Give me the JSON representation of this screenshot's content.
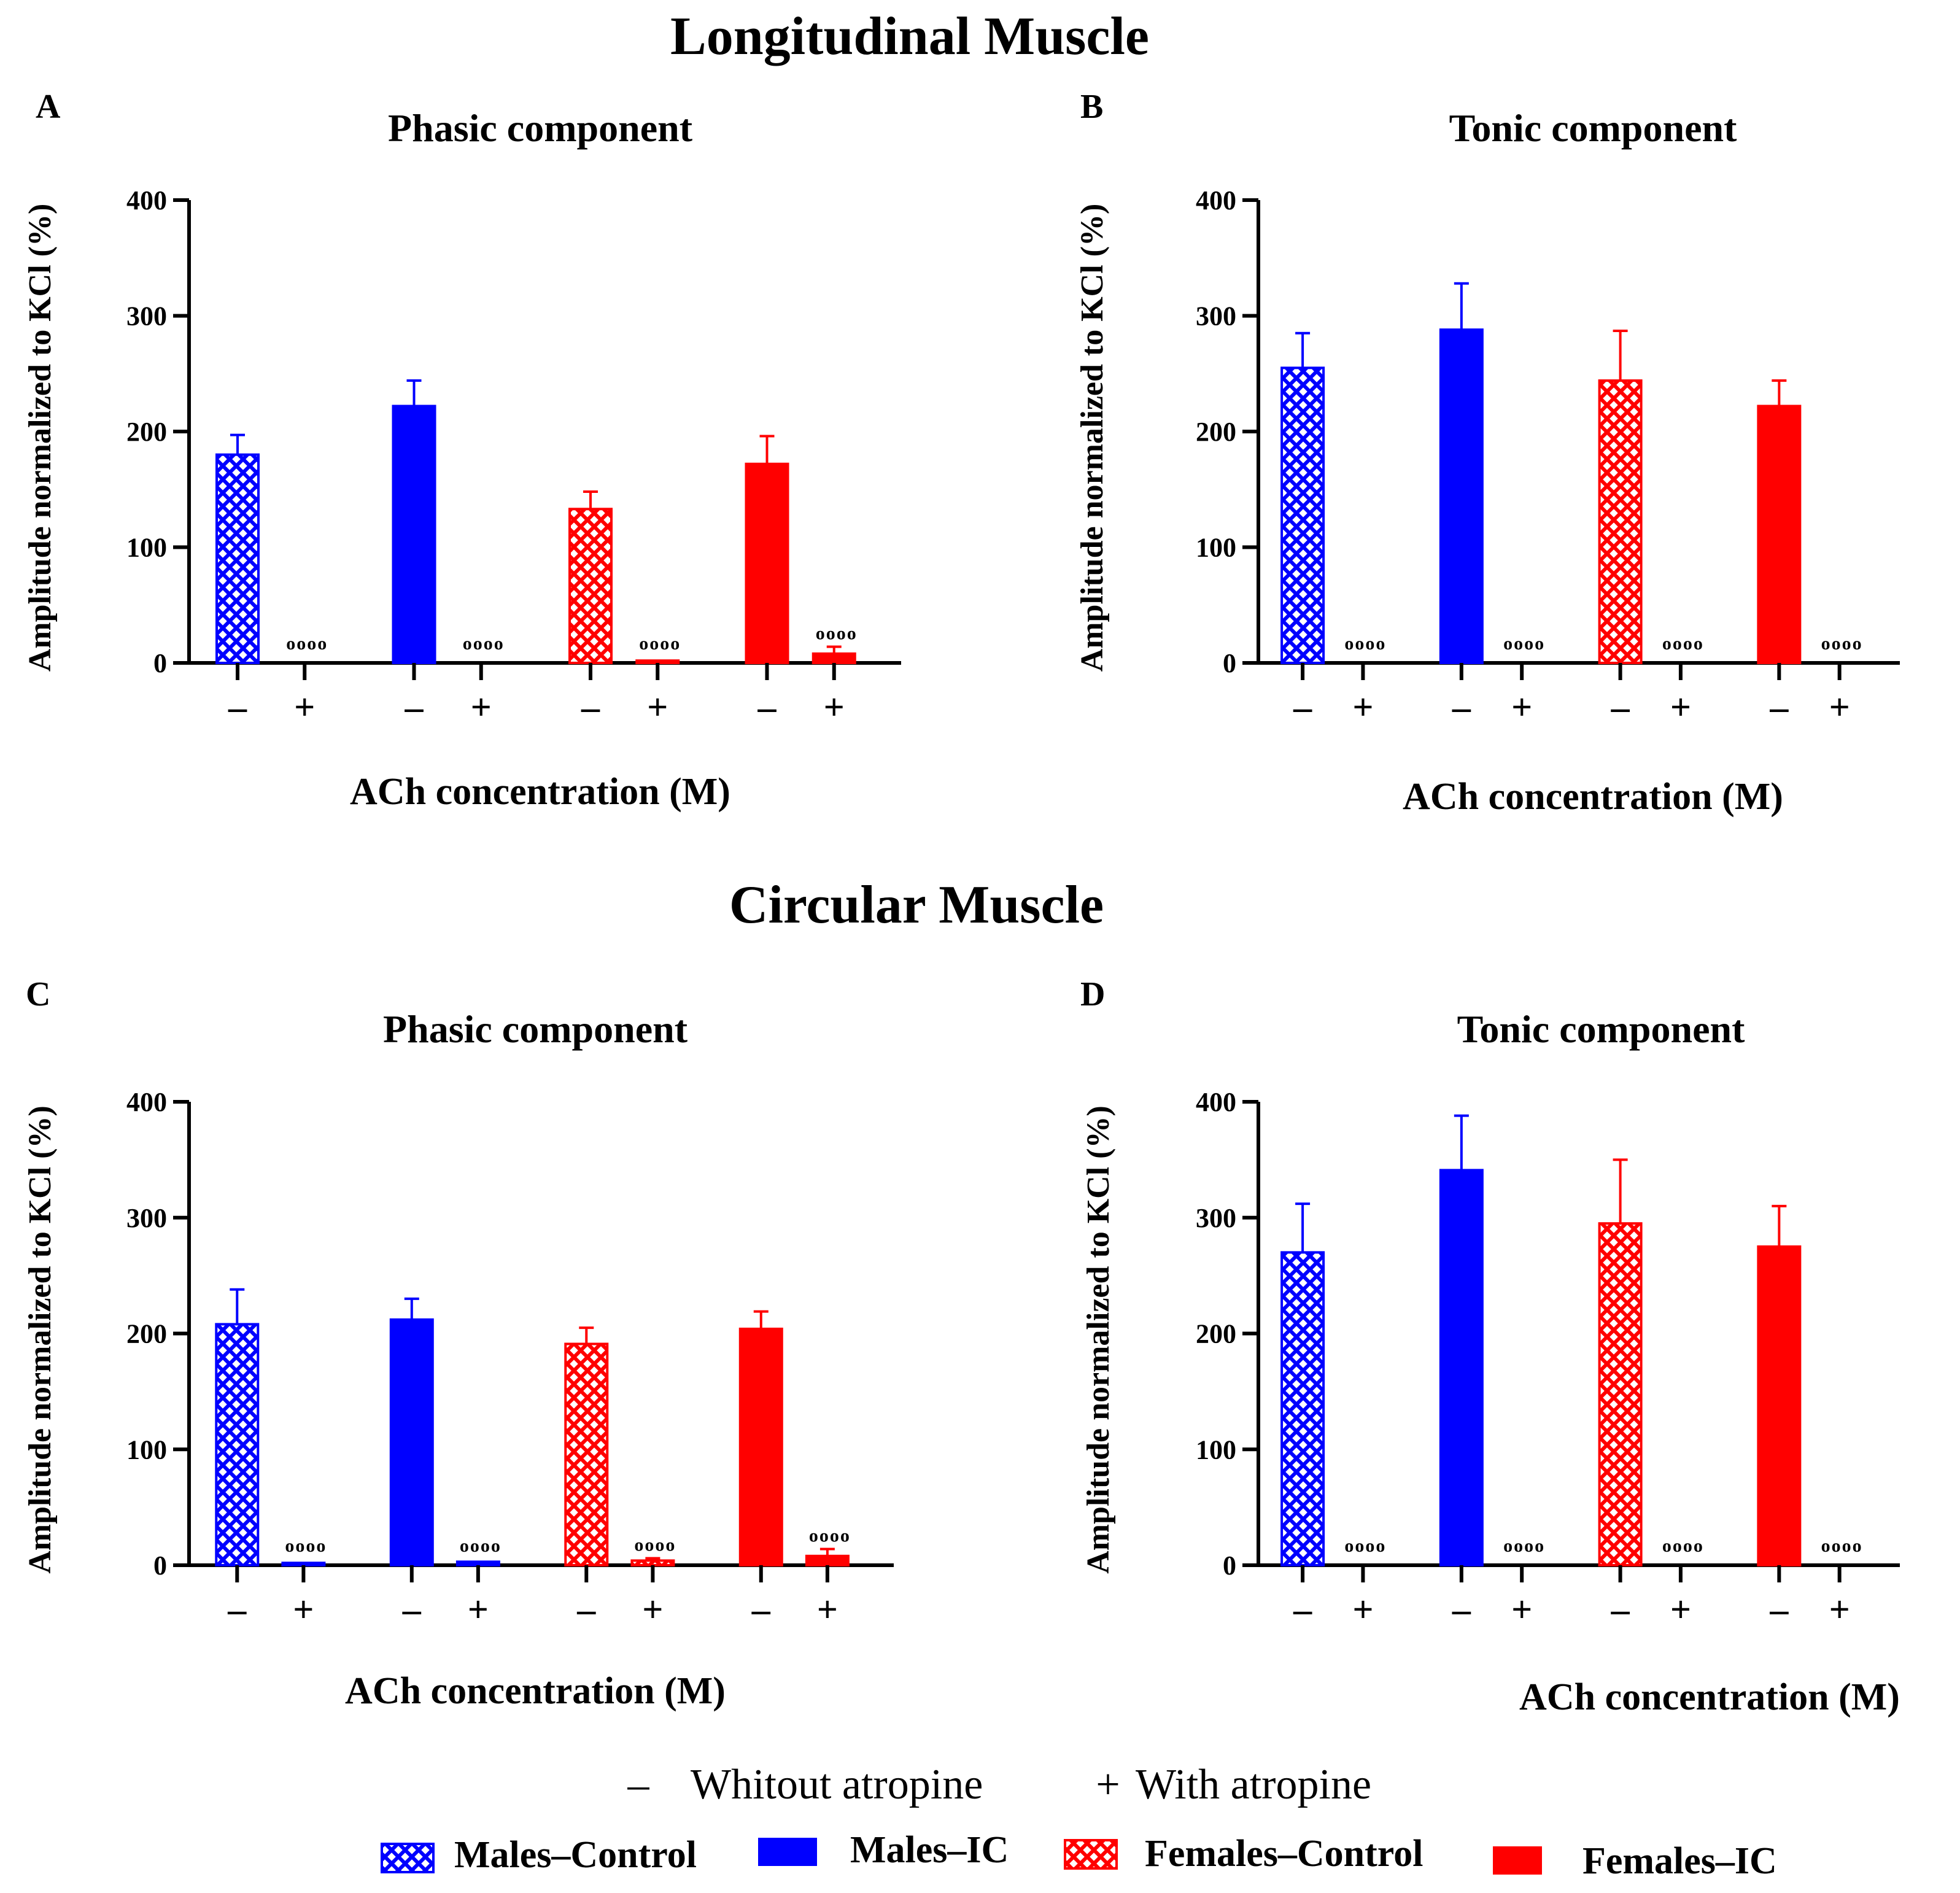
{
  "figure": {
    "sections": [
      {
        "title": "Longitudinal Muscle"
      },
      {
        "title": "Circular Muscle"
      }
    ],
    "legend": {
      "minus_symbol": "–",
      "minus_label": "Whitout atropine",
      "plus_symbol": "+",
      "plus_label": "With atropine",
      "groups": [
        {
          "label": "Males–Control",
          "color": "#0000ff",
          "pattern": "crosshatch"
        },
        {
          "label": "Males–IC",
          "color": "#0000ff",
          "pattern": "solid"
        },
        {
          "label": "Females–Control",
          "color": "#ff0000",
          "pattern": "crosshatch"
        },
        {
          "label": "Females–IC",
          "color": "#ff0000",
          "pattern": "solid"
        }
      ]
    }
  },
  "chart_data": [
    {
      "type": "bar",
      "panel": "A",
      "section": "Longitudinal Muscle",
      "title": "Phasic component",
      "xlabel": "ACh concentration (M)",
      "ylabel": "Amplitude normalized to KCl (%)",
      "ylim": [
        0,
        400
      ],
      "yticks": [
        0,
        100,
        200,
        300,
        400
      ],
      "categories": [
        "–",
        "+",
        "–",
        "+",
        "–",
        "+",
        "–",
        "+"
      ],
      "groups": [
        "Males–Control",
        "Males–IC",
        "Females–Control",
        "Females–IC"
      ],
      "values": [
        180,
        0,
        222,
        0,
        133,
        2,
        172,
        8
      ],
      "errors": [
        17,
        0,
        22,
        0,
        15,
        0,
        24,
        6
      ],
      "significance": [
        "",
        "oooo",
        "",
        "oooo",
        "",
        "oooo",
        "",
        "oooo"
      ]
    },
    {
      "type": "bar",
      "panel": "B",
      "section": "Longitudinal Muscle",
      "title": "Tonic component",
      "xlabel": "ACh concentration (M)",
      "ylabel": "Amplitude normalized to KCl (%)",
      "ylim": [
        0,
        400
      ],
      "yticks": [
        0,
        100,
        200,
        300,
        400
      ],
      "categories": [
        "–",
        "+",
        "–",
        "+",
        "–",
        "+",
        "–",
        "+"
      ],
      "groups": [
        "Males–Control",
        "Males–IC",
        "Females–Control",
        "Females–IC"
      ],
      "values": [
        255,
        0,
        288,
        0,
        244,
        0,
        222,
        0
      ],
      "errors": [
        30,
        0,
        40,
        0,
        43,
        0,
        22,
        0
      ],
      "significance": [
        "",
        "oooo",
        "",
        "oooo",
        "",
        "oooo",
        "",
        "oooo"
      ]
    },
    {
      "type": "bar",
      "panel": "C",
      "section": "Circular Muscle",
      "title": "Phasic component",
      "xlabel": "ACh concentration (M)",
      "ylabel": "Amplitude normalized to KCl (%)",
      "ylim": [
        0,
        400
      ],
      "yticks": [
        0,
        100,
        200,
        300,
        400
      ],
      "categories": [
        "–",
        "+",
        "–",
        "+",
        "–",
        "+",
        "–",
        "+"
      ],
      "groups": [
        "Males–Control",
        "Males–IC",
        "Females–Control",
        "Females–IC"
      ],
      "values": [
        208,
        2,
        212,
        3,
        191,
        4,
        204,
        8
      ],
      "errors": [
        30,
        0,
        18,
        0,
        14,
        2,
        15,
        6
      ],
      "significance": [
        "",
        "oooo",
        "",
        "oooo",
        "",
        "oooo",
        "",
        "oooo"
      ]
    },
    {
      "type": "bar",
      "panel": "D",
      "section": "Circular Muscle",
      "title": "Tonic component",
      "xlabel": "ACh concentration (M)",
      "ylabel": "Amplitude normalized to KCl (%)",
      "ylim": [
        0,
        400
      ],
      "yticks": [
        0,
        100,
        200,
        300,
        400
      ],
      "categories": [
        "–",
        "+",
        "–",
        "+",
        "–",
        "+",
        "–",
        "+"
      ],
      "groups": [
        "Males–Control",
        "Males–IC",
        "Females–Control",
        "Females–IC"
      ],
      "values": [
        270,
        0,
        341,
        0,
        295,
        0,
        275,
        0
      ],
      "errors": [
        42,
        0,
        47,
        0,
        55,
        0,
        35,
        0
      ],
      "significance": [
        "",
        "oooo",
        "",
        "oooo",
        "",
        "oooo",
        "",
        "oooo"
      ]
    }
  ]
}
